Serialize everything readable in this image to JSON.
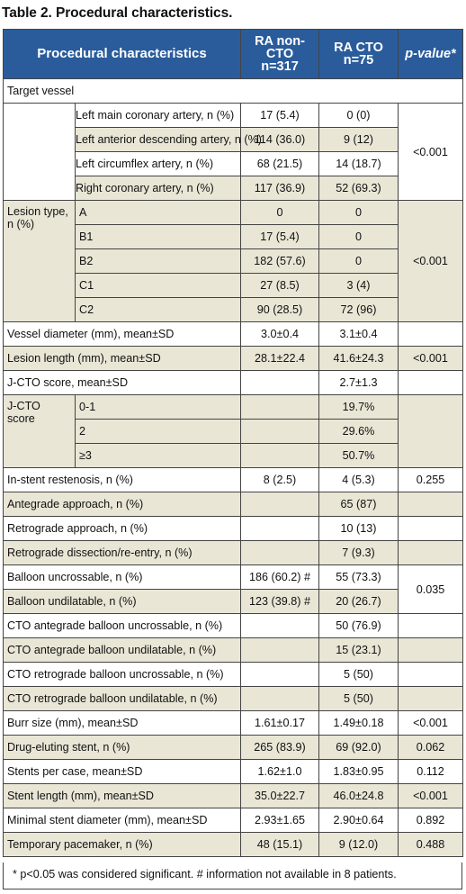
{
  "title": "Table 2. Procedural characteristics.",
  "headers": {
    "col1": "Procedural characteristics",
    "col2a": "RA non-CTO",
    "col2b": "n=317",
    "col3a": "RA CTO",
    "col3b": "n=75",
    "col4": "p-value*"
  },
  "rows": {
    "target_vessel": "Target vessel",
    "lm": {
      "label": "Left main coronary artery, n (%)",
      "a": "17 (5.4)",
      "b": "0 (0)"
    },
    "lad": {
      "label": "Left anterior descending artery, n (%)",
      "a": "114 (36.0)",
      "b": "9 (12)"
    },
    "lcx": {
      "label": "Left circumflex artery, n (%)",
      "a": "68 (21.5)",
      "b": "14 (18.7)"
    },
    "rca": {
      "label": "Right coronary artery, n (%)",
      "a": "117 (36.9)",
      "b": "52 (69.3)"
    },
    "tv_p": "<0.001",
    "lesion_type": "Lesion type, n (%)",
    "lt_a": {
      "label": "A",
      "a": "0",
      "b": "0"
    },
    "lt_b1": {
      "label": "B1",
      "a": "17 (5.4)",
      "b": "0"
    },
    "lt_b2": {
      "label": "B2",
      "a": "182 (57.6)",
      "b": "0"
    },
    "lt_c1": {
      "label": "C1",
      "a": "27 (8.5)",
      "b": "3 (4)"
    },
    "lt_c2": {
      "label": "C2",
      "a": "90 (28.5)",
      "b": "72 (96)"
    },
    "lt_p": "<0.001",
    "vessel_diam": {
      "label": "Vessel diameter (mm), mean±SD",
      "a": "3.0±0.4",
      "b": "3.1±0.4",
      "p": ""
    },
    "lesion_len": {
      "label": "Lesion length (mm), mean±SD",
      "a": "28.1±22.4",
      "b": "41.6±24.3",
      "p": "<0.001"
    },
    "jcto_mean": {
      "label": "J-CTO score, mean±SD",
      "a": "",
      "b": "2.7±1.3",
      "p": ""
    },
    "jcto_score": "J-CTO score",
    "jcto_01": {
      "label": "0-1",
      "b": "19.7%"
    },
    "jcto_2": {
      "label": "2",
      "b": "29.6%"
    },
    "jcto_3": {
      "label": "≥3",
      "b": "50.7%"
    },
    "isr": {
      "label": "In-stent restenosis, n (%)",
      "a": "8 (2.5)",
      "b": "4 (5.3)",
      "p": "0.255"
    },
    "antegrade": {
      "label": "Antegrade approach, n (%)",
      "a": "",
      "b": "65 (87)",
      "p": ""
    },
    "retrograde": {
      "label": "Retrograde approach, n (%)",
      "a": "",
      "b": "10 (13)",
      "p": ""
    },
    "rdr": {
      "label": "Retrograde dissection/re-entry, n (%)",
      "a": "",
      "b": "7 (9.3)",
      "p": ""
    },
    "bal_uncross": {
      "label": "Balloon uncrossable, n (%)",
      "a": "186 (60.2) #",
      "b": "55 (73.3)"
    },
    "bal_undil": {
      "label": "Balloon undilatable, n (%)",
      "a": "123 (39.8) #",
      "b": "20 (26.7)"
    },
    "bal_p": "0.035",
    "cto_ant_unc": {
      "label": "CTO antegrade balloon uncrossable, n (%)",
      "a": "",
      "b": "50 (76.9)",
      "p": ""
    },
    "cto_ant_und": {
      "label": "CTO antegrade balloon undilatable, n (%)",
      "a": "",
      "b": "15 (23.1)",
      "p": ""
    },
    "cto_ret_unc": {
      "label": "CTO retrograde balloon uncrossable, n (%)",
      "a": "",
      "b": "5 (50)",
      "p": ""
    },
    "cto_ret_und": {
      "label": "CTO retrograde balloon undilatable, n (%)",
      "a": "",
      "b": "5 (50)",
      "p": ""
    },
    "burr": {
      "label": "Burr size (mm), mean±SD",
      "a": "1.61±0.17",
      "b": "1.49±0.18",
      "p": "<0.001"
    },
    "des": {
      "label": "Drug-eluting stent, n (%)",
      "a": "265 (83.9)",
      "b": "69 (92.0)",
      "p": "0.062"
    },
    "stents_case": {
      "label": "Stents per case, mean±SD",
      "a": "1.62±1.0",
      "b": "1.83±0.95",
      "p": "0.112"
    },
    "stent_len": {
      "label": "Stent length (mm), mean±SD",
      "a": "35.0±22.7",
      "b": "46.0±24.8",
      "p": "<0.001"
    },
    "min_diam": {
      "label": "Minimal stent diameter (mm), mean±SD",
      "a": "2.93±1.65",
      "b": "2.90±0.64",
      "p": "0.892"
    },
    "pacemaker": {
      "label": "Temporary pacemaker, n (%)",
      "a": "48 (15.1)",
      "b": "9 (12.0)",
      "p": "0.488"
    }
  },
  "footnote": "* p<0.05 was considered significant. # information not available in 8 patients."
}
